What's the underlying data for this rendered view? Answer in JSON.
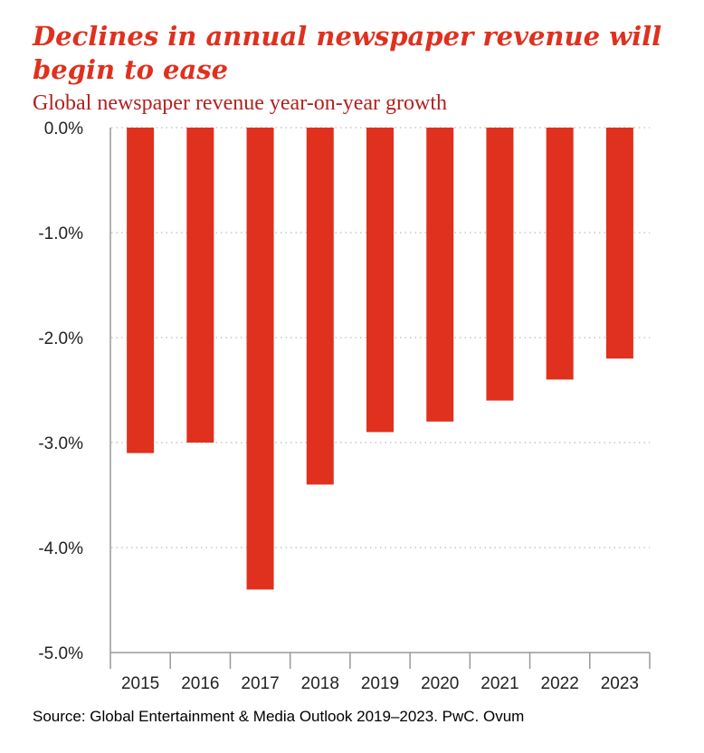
{
  "title": "Declines in annual newspaper revenue will begin to ease",
  "subtitle": "Global newspaper revenue year-on-year growth",
  "source": "Source: Global Entertainment & Media Outlook 2019–2023. PwC. Ovum",
  "colors": {
    "bar": "#e0301e",
    "title": "#e0301e",
    "subtitle": "#b0221e",
    "grid": "#bbbbbb"
  },
  "chart_data": {
    "type": "bar",
    "categories": [
      "2015",
      "2016",
      "2017",
      "2018",
      "2019",
      "2020",
      "2021",
      "2022",
      "2023"
    ],
    "values": [
      -3.1,
      -3.0,
      -4.4,
      -3.4,
      -2.9,
      -2.8,
      -2.6,
      -2.4,
      -2.2
    ],
    "yticks": [
      0,
      -1,
      -2,
      -3,
      -4,
      -5
    ],
    "ytick_labels": [
      "0.0%",
      "-1.0%",
      "-2.0%",
      "-3.0%",
      "-4.0%",
      "-5.0%"
    ],
    "ylim": [
      -5,
      0
    ],
    "grid": true,
    "xlabel": "",
    "ylabel": ""
  }
}
